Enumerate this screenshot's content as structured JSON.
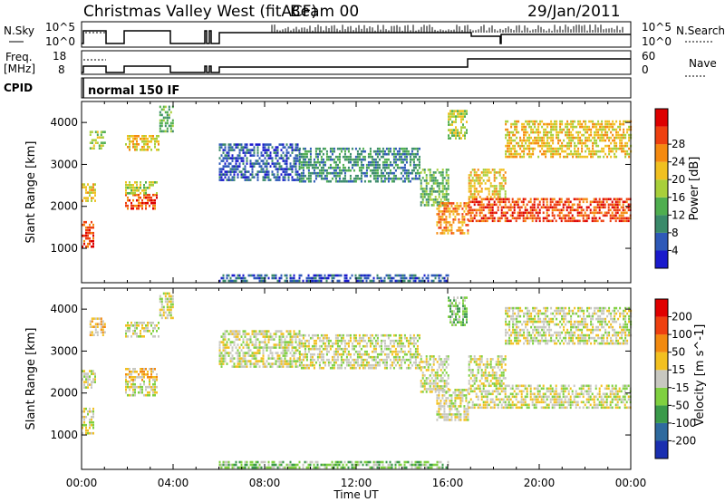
{
  "header": {
    "title": "Christmas Valley West (fitACF)",
    "beam": "Beam 00",
    "date": "29/Jan/2011"
  },
  "params_panel": {
    "nsky_label": "N.Sky",
    "nsearch_label": "N.Search",
    "freq_label_1": "Freq.",
    "freq_label_2": "[MHz]",
    "nave_label": "Nave",
    "cpid_label": "CPID",
    "cpid_text": "normal 150 IF",
    "noise_left_ticks": [
      "10^5",
      "10^0"
    ],
    "noise_right_ticks": [
      "10^5",
      "10^0"
    ],
    "freq_left_ticks": [
      "18",
      "8"
    ],
    "freq_right_ticks": [
      "60",
      "0"
    ]
  },
  "colors": {
    "power": [
      "#1a1acc",
      "#2e59b8",
      "#3a8a6a",
      "#4fae4f",
      "#a8cf3a",
      "#f0c020",
      "#f58a10",
      "#ee4010",
      "#dd0000"
    ],
    "velocity": [
      "#1a2fb0",
      "#2e6a9e",
      "#3a9a4a",
      "#7fd040",
      "#c8c8c0",
      "#f2c020",
      "#f28a10",
      "#ee4010",
      "#e00000"
    ]
  },
  "chart_data": [
    {
      "type": "heatmap",
      "title": "",
      "xlabel": "",
      "ylabel": "Slant Range [km]",
      "colorbar_label": "Power [dB]",
      "colorbar_ticks": [
        "4",
        "8",
        "12",
        "16",
        "20",
        "24",
        "28"
      ],
      "x_ticks": [
        "00:00",
        "04:00",
        "08:00",
        "12:00",
        "16:00",
        "20:00",
        "00:00"
      ],
      "y_ticks": [
        "1000",
        "2000",
        "3000",
        "4000"
      ],
      "xlim": [
        0,
        24
      ],
      "ylim": [
        180,
        4500
      ],
      "regions": [
        {
          "t": [
            0.0,
            0.55
          ],
          "r": [
            1050,
            1650
          ],
          "level": 7
        },
        {
          "t": [
            0.0,
            0.6
          ],
          "r": [
            2150,
            2550
          ],
          "level": 5
        },
        {
          "t": [
            0.35,
            1.0
          ],
          "r": [
            3350,
            3800
          ],
          "level": 4
        },
        {
          "t": [
            1.9,
            3.3
          ],
          "r": [
            1950,
            2300
          ],
          "level": 7
        },
        {
          "t": [
            1.9,
            3.3
          ],
          "r": [
            2300,
            2600
          ],
          "level": 4
        },
        {
          "t": [
            1.9,
            3.4
          ],
          "r": [
            3350,
            3700
          ],
          "level": 5
        },
        {
          "t": [
            3.4,
            4.0
          ],
          "r": [
            3800,
            4400
          ],
          "level": 3
        },
        {
          "t": [
            6.0,
            9.5
          ],
          "r": [
            2600,
            3500
          ],
          "level": 1
        },
        {
          "t": [
            9.5,
            14.8
          ],
          "r": [
            2600,
            3400
          ],
          "level": 2
        },
        {
          "t": [
            14.8,
            16.0
          ],
          "r": [
            2000,
            2900
          ],
          "level": 3
        },
        {
          "t": [
            15.5,
            16.9
          ],
          "r": [
            1350,
            2100
          ],
          "level": 6
        },
        {
          "t": [
            16.0,
            16.8
          ],
          "r": [
            3600,
            4300
          ],
          "level": 4
        },
        {
          "t": [
            16.9,
            24.0
          ],
          "r": [
            1650,
            2200
          ],
          "level": 7
        },
        {
          "t": [
            16.9,
            18.5
          ],
          "r": [
            2200,
            2900
          ],
          "level": 5
        },
        {
          "t": [
            18.5,
            24.0
          ],
          "r": [
            3200,
            4050
          ],
          "level": 5
        },
        {
          "t": [
            6.0,
            16.0
          ],
          "r": [
            200,
            380
          ],
          "level": 1
        }
      ]
    },
    {
      "type": "heatmap",
      "title": "",
      "xlabel": "Time UT",
      "ylabel": "Slant Range [km]",
      "colorbar_label": "Velocity [m s^-1]",
      "colorbar_ticks": [
        "200",
        "100",
        "50",
        "15",
        "-15",
        "-50",
        "-100",
        "-200"
      ],
      "x_ticks": [
        "00:00",
        "04:00",
        "08:00",
        "12:00",
        "16:00",
        "20:00",
        "00:00"
      ],
      "y_ticks": [
        "1000",
        "2000",
        "3000",
        "4000"
      ],
      "xlim": [
        0,
        24
      ],
      "ylim": [
        180,
        4500
      ],
      "regions": [
        {
          "t": [
            0.0,
            0.55
          ],
          "r": [
            1050,
            1650
          ],
          "level": 4
        },
        {
          "t": [
            0.0,
            0.6
          ],
          "r": [
            2150,
            2550
          ],
          "level": 4
        },
        {
          "t": [
            0.35,
            1.0
          ],
          "r": [
            3350,
            3800
          ],
          "level": 5
        },
        {
          "t": [
            1.9,
            3.3
          ],
          "r": [
            1950,
            2300
          ],
          "level": 4
        },
        {
          "t": [
            1.9,
            3.3
          ],
          "r": [
            2300,
            2600
          ],
          "level": 5
        },
        {
          "t": [
            1.9,
            3.4
          ],
          "r": [
            3350,
            3700
          ],
          "level": 4
        },
        {
          "t": [
            3.4,
            4.0
          ],
          "r": [
            3800,
            4400
          ],
          "level": 4
        },
        {
          "t": [
            6.0,
            9.5
          ],
          "r": [
            2600,
            3500
          ],
          "level": 4
        },
        {
          "t": [
            9.5,
            14.8
          ],
          "r": [
            2600,
            3400
          ],
          "level": 4
        },
        {
          "t": [
            14.8,
            16.0
          ],
          "r": [
            2000,
            2900
          ],
          "level": 4
        },
        {
          "t": [
            15.5,
            16.9
          ],
          "r": [
            1350,
            2100
          ],
          "level": 4
        },
        {
          "t": [
            16.0,
            16.8
          ],
          "r": [
            3600,
            4300
          ],
          "level": 3
        },
        {
          "t": [
            16.9,
            24.0
          ],
          "r": [
            1650,
            2200
          ],
          "level": 4
        },
        {
          "t": [
            16.9,
            18.5
          ],
          "r": [
            2200,
            2900
          ],
          "level": 4
        },
        {
          "t": [
            18.5,
            24.0
          ],
          "r": [
            3200,
            4050
          ],
          "level": 4
        },
        {
          "t": [
            6.0,
            16.0
          ],
          "r": [
            200,
            380
          ],
          "level": 3
        }
      ]
    }
  ]
}
